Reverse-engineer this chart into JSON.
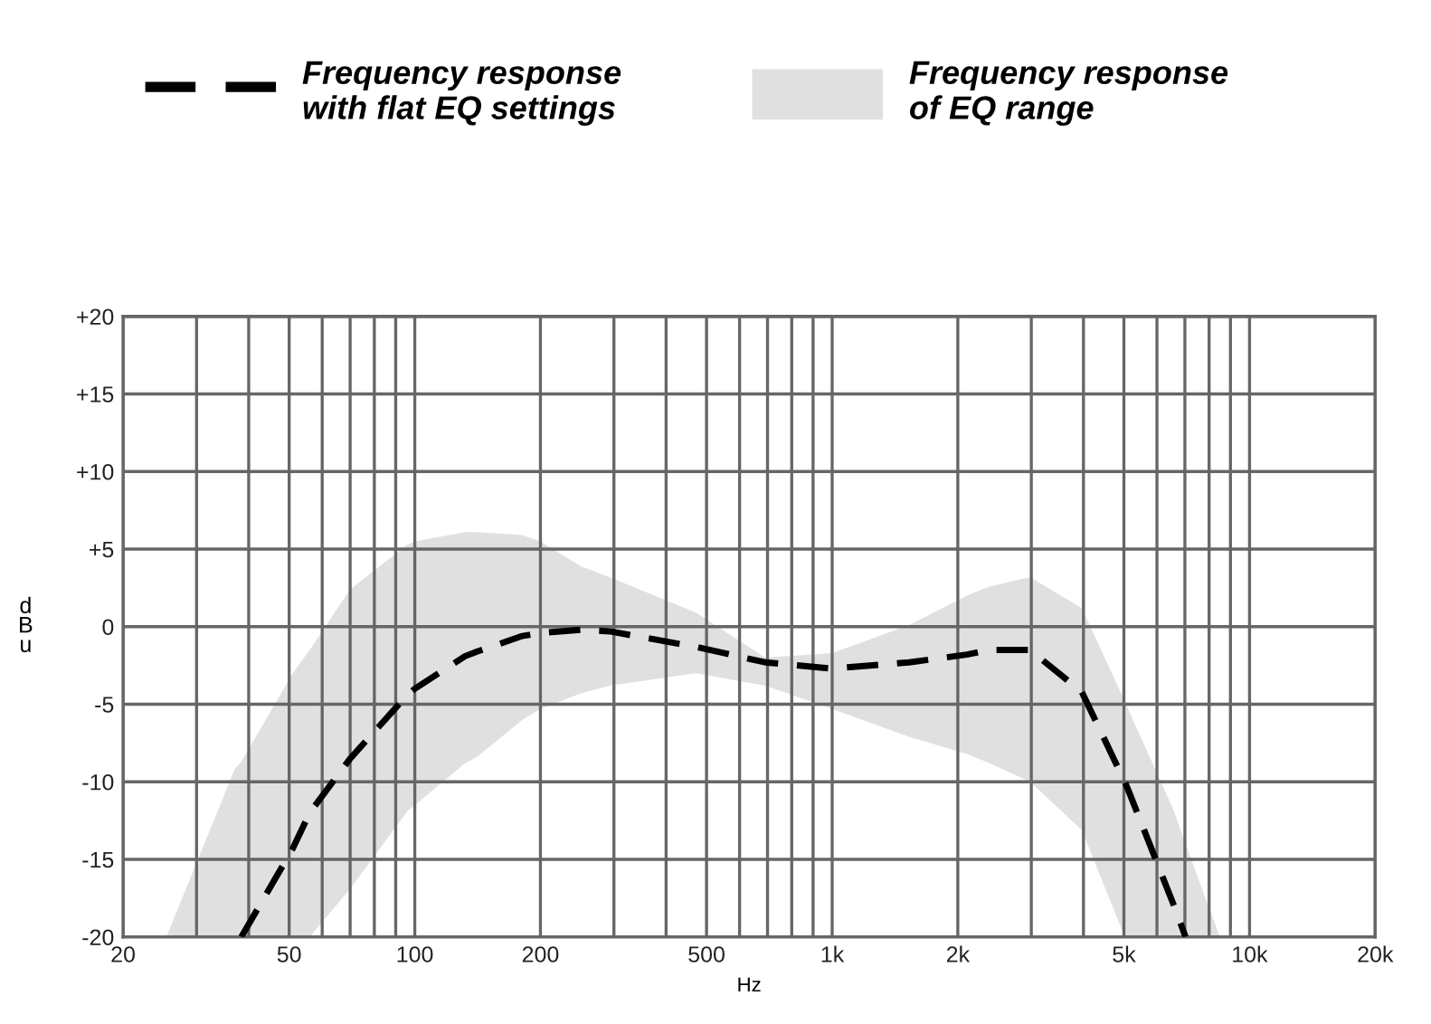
{
  "chart_data": {
    "type": "line",
    "xlabel": "Hz",
    "ylabel": "dBu",
    "log": "x",
    "grid": true,
    "legend": "top",
    "annotations": [
      "Frequency response\nof EQ range"
    ],
    "xlim": [
      20,
      20000
    ],
    "ylim": [
      -20,
      20
    ],
    "xticks": [
      20,
      {
        "value": 30,
        "label": null
      },
      {
        "value": 40,
        "label": null
      },
      50,
      {
        "value": 60,
        "label": null
      },
      {
        "value": 70,
        "label": null
      },
      {
        "value": 80,
        "label": null
      },
      {
        "value": 90,
        "label": null
      },
      100,
      200,
      {
        "value": 300,
        "label": null
      },
      {
        "value": 400,
        "label": null
      },
      500,
      {
        "value": 600,
        "label": null
      },
      {
        "value": 700,
        "label": null
      },
      {
        "value": 800,
        "label": null
      },
      {
        "value": 900,
        "label": null
      },
      {
        "value": 1000,
        "label": "1k"
      },
      {
        "value": 2000,
        "label": "2k"
      },
      {
        "value": 3000,
        "label": null
      },
      {
        "value": 4000,
        "label": null
      },
      {
        "value": 5000,
        "label": "5k"
      },
      {
        "value": 6000,
        "label": null
      },
      {
        "value": 7000,
        "label": null
      },
      {
        "value": 8000,
        "label": null
      },
      {
        "value": 9000,
        "label": null
      },
      {
        "value": 10000,
        "label": "10k"
      },
      {
        "value": 20000,
        "label": "20k"
      }
    ],
    "yticks": [
      {
        "value": -20,
        "label": "-20"
      },
      {
        "value": -15,
        "label": "-15"
      },
      {
        "value": -10,
        "label": "-10"
      },
      {
        "value": -5,
        "label": "-5"
      },
      0,
      {
        "value": 5,
        "label": "+5"
      },
      {
        "value": 10,
        "label": "+10"
      },
      {
        "value": 15,
        "label": "+15"
      },
      {
        "value": 20,
        "label": "+20"
      }
    ],
    "series": [
      {
        "name": "Frequency response\nwith flat EQ settings",
        "color": "#000000",
        "line_style": "dashed",
        "x": [
          25.4,
          37,
          38.4,
          51,
          56,
          70,
          96,
          100,
          132,
          141,
          181,
          200,
          250,
          293,
          472,
          691,
          1000,
          1528,
          2101,
          2385,
          2979,
          3963,
          5024,
          5117,
          6594,
          7025,
          8493
        ],
        "values": [
          null,
          null,
          -20,
          -14.3,
          -12.0,
          -8.5,
          -4.4,
          -4.0,
          -1.9,
          -1.6,
          -0.6,
          -0.4,
          -0.2,
          -0.3,
          -1.3,
          -2.3,
          -2.7,
          -2.3,
          -1.8,
          -1.5,
          -1.5,
          -4.2,
          -10.0,
          -10.5,
          -18.0,
          -20,
          null
        ],
        "upper": [
          -20,
          -9.2,
          -8.7,
          -3.0,
          -1.5,
          2.4,
          5.3,
          5.5,
          6.1,
          6.1,
          5.9,
          5.5,
          3.9,
          3.2,
          0.9,
          -2.0,
          -1.7,
          0.1,
          2.0,
          2.6,
          3.2,
          1.2,
          -4.8,
          -5.3,
          -11.9,
          -14.0,
          -20
        ],
        "lower": [
          -20,
          -20,
          -20,
          -20,
          -20,
          -16.9,
          -11.9,
          -11.5,
          -8.8,
          -8.4,
          -6.0,
          -5.3,
          -4.3,
          -3.8,
          -3.0,
          -3.8,
          -5.3,
          -7.1,
          -8.2,
          -8.8,
          -10.0,
          -13.1,
          -20,
          -20,
          -20,
          -20,
          -20
        ]
      }
    ]
  }
}
